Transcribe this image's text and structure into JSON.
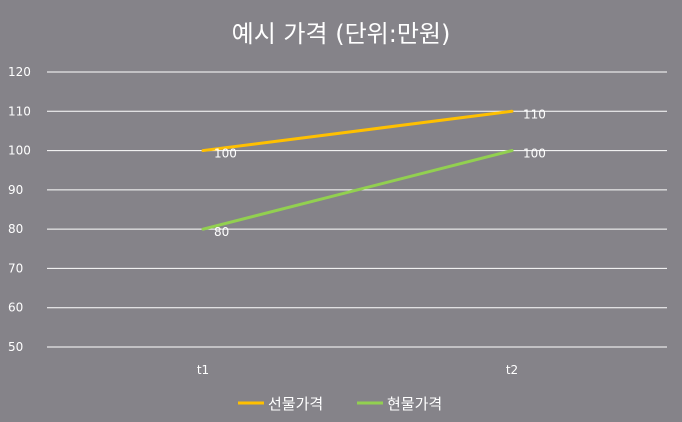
{
  "chart_data": {
    "type": "line",
    "title": "예시 가격 (단위:만원)",
    "categories": [
      "t1",
      "t2"
    ],
    "series": [
      {
        "name": "선물가격",
        "values": [
          100,
          110
        ],
        "color": "#ffc000"
      },
      {
        "name": "현물가격",
        "values": [
          80,
          100
        ],
        "color": "#92d050"
      }
    ],
    "ylim": [
      50,
      120
    ],
    "yticks": [
      50,
      60,
      70,
      80,
      90,
      100,
      110,
      120
    ],
    "grid": true,
    "legend": "bottom",
    "data_labels": true,
    "background": "#858389",
    "gridline_color": "#ffffff"
  }
}
